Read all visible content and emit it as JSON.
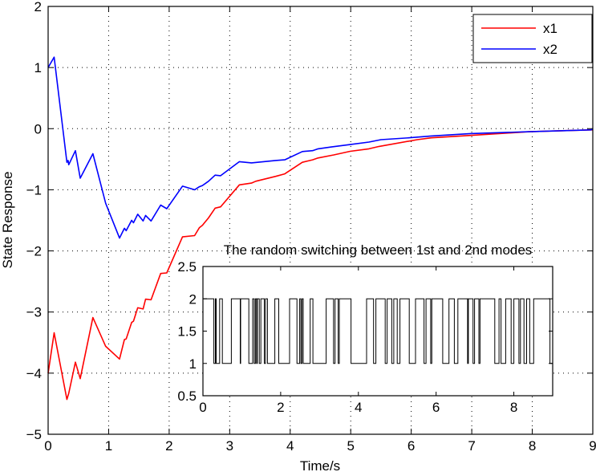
{
  "chart_data": [
    {
      "type": "line",
      "xlabel": "Time/s",
      "ylabel": "State Response",
      "xlim": [
        0,
        9
      ],
      "ylim": [
        -5,
        2
      ],
      "xticks": [
        0,
        1,
        2,
        3,
        4,
        5,
        6,
        7,
        8,
        9
      ],
      "yticks": [
        -5,
        -4,
        -3,
        -2,
        -1,
        0,
        1,
        2
      ],
      "grid": true,
      "legend_placement": "top-right",
      "series": [
        {
          "name": "x1",
          "color": "#ff0000",
          "x": [
            0,
            0.1,
            0.31,
            0.34,
            0.45,
            0.53,
            0.74,
            0.95,
            1.18,
            1.26,
            1.29,
            1.38,
            1.41,
            1.48,
            1.57,
            1.61,
            1.7,
            1.86,
            1.96,
            2.22,
            2.42,
            2.5,
            2.55,
            2.65,
            2.76,
            2.85,
            3.16,
            3.36,
            3.43,
            3.76,
            3.91,
            4.2,
            4.37,
            4.46,
            4.72,
            4.99,
            5.3,
            5.47,
            6.1,
            6.33,
            6.98,
            7.95,
            8.97,
            9
          ],
          "y": [
            -4.0,
            -3.34,
            -4.43,
            -4.33,
            -3.82,
            -4.09,
            -3.09,
            -3.56,
            -3.77,
            -3.45,
            -3.44,
            -3.17,
            -3.15,
            -2.93,
            -2.95,
            -2.79,
            -2.8,
            -2.37,
            -2.36,
            -1.77,
            -1.75,
            -1.62,
            -1.58,
            -1.46,
            -1.3,
            -1.28,
            -0.92,
            -0.89,
            -0.86,
            -0.78,
            -0.74,
            -0.55,
            -0.51,
            -0.48,
            -0.43,
            -0.37,
            -0.33,
            -0.29,
            -0.18,
            -0.15,
            -0.11,
            -0.05,
            -0.02,
            -0.02
          ]
        },
        {
          "name": "x2",
          "color": "#0000ff",
          "x": [
            0,
            0.1,
            0.31,
            0.33,
            0.34,
            0.45,
            0.53,
            0.74,
            0.95,
            1.18,
            1.26,
            1.29,
            1.38,
            1.41,
            1.48,
            1.57,
            1.61,
            1.7,
            1.86,
            1.96,
            2.22,
            2.42,
            2.5,
            2.55,
            2.65,
            2.76,
            2.85,
            3.16,
            3.36,
            3.76,
            3.91,
            4.2,
            4.37,
            4.46,
            4.68,
            4.99,
            5.3,
            5.5,
            5.96,
            6.33,
            6.98,
            7.95,
            8.97,
            9
          ],
          "y": [
            1.0,
            1.17,
            -0.55,
            -0.52,
            -0.59,
            -0.36,
            -0.81,
            -0.41,
            -1.22,
            -1.79,
            -1.63,
            -1.67,
            -1.5,
            -1.54,
            -1.4,
            -1.51,
            -1.42,
            -1.51,
            -1.25,
            -1.31,
            -0.94,
            -1.0,
            -0.95,
            -0.93,
            -0.86,
            -0.76,
            -0.77,
            -0.54,
            -0.56,
            -0.52,
            -0.51,
            -0.375,
            -0.36,
            -0.33,
            -0.3,
            -0.26,
            -0.22,
            -0.18,
            -0.15,
            -0.12,
            -0.08,
            -0.05,
            -0.02,
            -0.01
          ]
        }
      ]
    },
    {
      "type": "line",
      "title": "The random switching between 1st and 2nd modes",
      "xlim": [
        0,
        9
      ],
      "ylim": [
        0.5,
        2.5
      ],
      "xticks": [
        0,
        2,
        4,
        6,
        8
      ],
      "yticks": [
        0.5,
        1,
        1.5,
        2,
        2.5
      ],
      "ytick_labels": [
        "0.5",
        "1",
        "1.5",
        "2",
        "2.5"
      ],
      "grid": false,
      "series": [
        {
          "color": "#000000",
          "initial_mode": 2,
          "switch_times": [
            0.28,
            0.32,
            0.34,
            0.43,
            0.5,
            0.73,
            0.96,
            0.97,
            1.18,
            1.28,
            1.32,
            1.35,
            1.38,
            1.4,
            1.45,
            1.49,
            1.58,
            1.61,
            1.66,
            1.85,
            1.95,
            2.23,
            2.42,
            2.49,
            2.52,
            2.55,
            2.58,
            2.76,
            2.83,
            3.17,
            3.36,
            3.4,
            3.48,
            3.51,
            3.81,
            4.21,
            4.39,
            4.45,
            4.69,
            4.74,
            4.86,
            4.91,
            5.0,
            5.07,
            5.31,
            5.47,
            5.69,
            5.74,
            5.86,
            5.89,
            6.17,
            6.33,
            6.47,
            6.56,
            6.81,
            6.83,
            6.95,
            6.99,
            7.1,
            7.13,
            7.51,
            7.62,
            7.67,
            7.79,
            7.93,
            8.0,
            8.13,
            8.17,
            8.26,
            8.33,
            8.41,
            8.51,
            8.93
          ]
        }
      ]
    }
  ]
}
